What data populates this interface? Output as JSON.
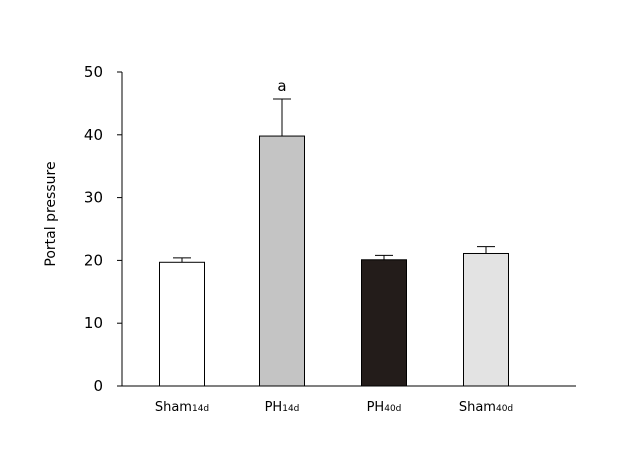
{
  "chart_data": {
    "type": "bar",
    "ylabel": "Portal pressure",
    "xlabel": "",
    "ylim": [
      0,
      50
    ],
    "yticks": [
      0,
      10,
      20,
      30,
      40,
      50
    ],
    "grid": false,
    "categories": [
      {
        "main": "Sham",
        "sub": "14d"
      },
      {
        "main": "PH",
        "sub": "14d"
      },
      {
        "main": "PH",
        "sub": "40d"
      },
      {
        "main": "Sham",
        "sub": "40d"
      }
    ],
    "values": [
      19.7,
      39.8,
      20.1,
      21.1
    ],
    "errors": [
      0.7,
      5.9,
      0.7,
      1.1
    ],
    "bar_colors": [
      "#ffffff",
      "#c4c4c4",
      "#231c1a",
      "#e3e3e3"
    ],
    "annotations": [
      {
        "category_index": 1,
        "text": "a"
      }
    ]
  }
}
